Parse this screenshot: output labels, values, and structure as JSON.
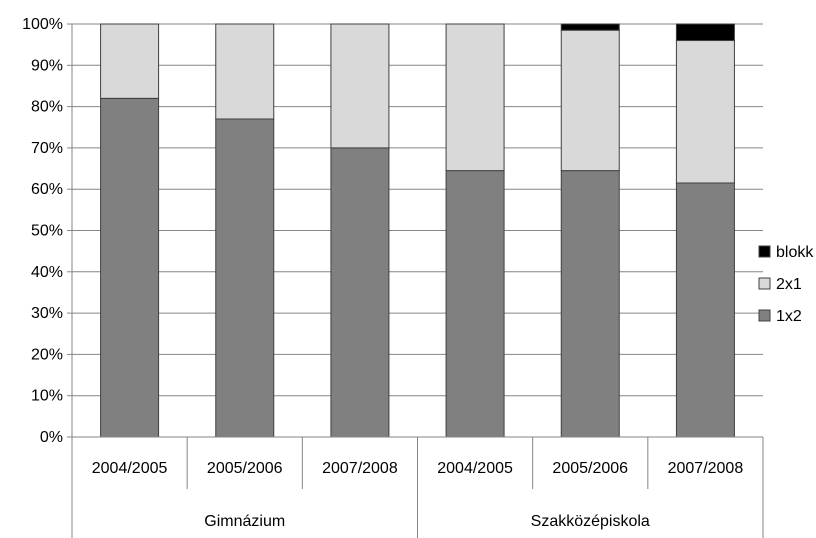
{
  "chart_data": {
    "type": "bar",
    "stacked": true,
    "percent": true,
    "categories": [
      "2004/2005",
      "2005/2006",
      "2007/2008",
      "2004/2005",
      "2005/2006",
      "2007/2008"
    ],
    "groups": [
      {
        "label": "Gimnázium",
        "categories": [
          0,
          1,
          2
        ]
      },
      {
        "label": "Szakközépiskola",
        "categories": [
          3,
          4,
          5
        ]
      }
    ],
    "series": [
      {
        "name": "1x2",
        "color": "#808080",
        "values": [
          82,
          77,
          70,
          64.5,
          64.5,
          61.5
        ]
      },
      {
        "name": "2x1",
        "color": "#d9d9d9",
        "values": [
          18,
          23,
          30,
          35.5,
          34,
          34.5
        ]
      },
      {
        "name": "blokk",
        "color": "#000000",
        "values": [
          0,
          0,
          0,
          0,
          1.5,
          4
        ]
      }
    ],
    "y_ticks": [
      "0%",
      "10%",
      "20%",
      "30%",
      "40%",
      "50%",
      "60%",
      "70%",
      "80%",
      "90%",
      "100%"
    ],
    "ylim": [
      0,
      100
    ],
    "grid": true,
    "legend": "right",
    "legend_order": [
      "blokk",
      "2x1",
      "1x2"
    ]
  }
}
